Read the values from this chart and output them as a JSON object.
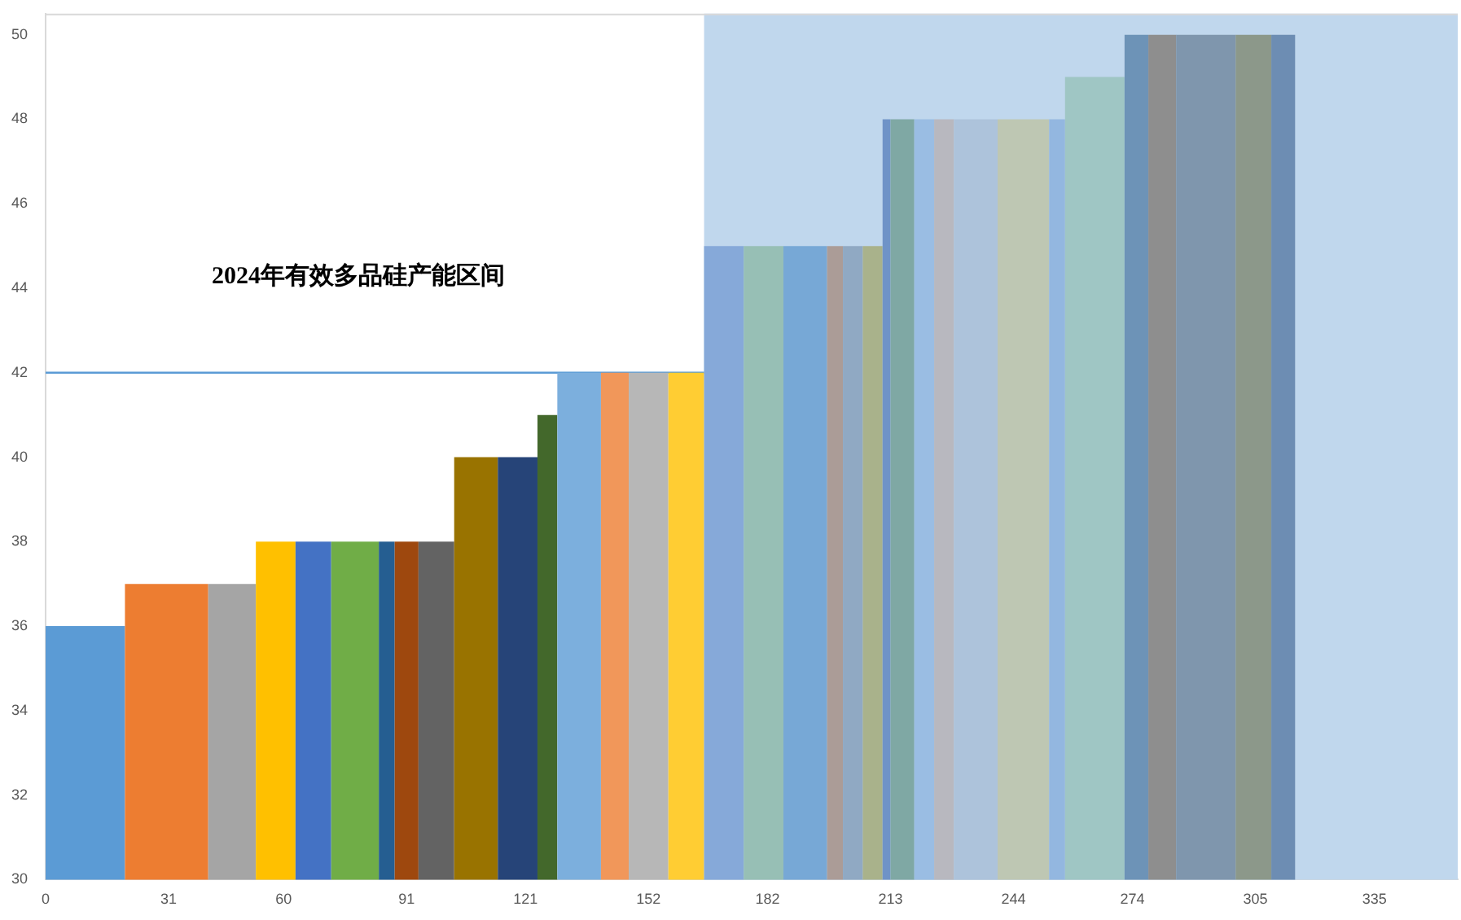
{
  "chart_data": {
    "type": "histogram",
    "bins": [
      0,
      20,
      41,
      53,
      63,
      72,
      84,
      88,
      94,
      103,
      114,
      124,
      129,
      140,
      147,
      157,
      166,
      176,
      186,
      197,
      201,
      206,
      211,
      213,
      219,
      224,
      229,
      240,
      253,
      257,
      272,
      278,
      285,
      300,
      309,
      315
    ],
    "values": [
      36,
      37,
      37,
      38,
      38,
      38,
      38,
      38,
      38,
      40,
      40,
      41,
      42,
      42,
      42,
      42,
      45,
      45,
      45,
      45,
      45,
      45,
      48,
      48,
      48,
      48,
      48,
      48,
      48,
      49,
      50,
      50,
      50,
      50,
      50
    ],
    "colors": [
      "#5b9bd5",
      "#ed7d31",
      "#a5a5a5",
      "#ffc000",
      "#4472c4",
      "#70ad47",
      "#255e91",
      "#9e480e",
      "#636363",
      "#997300",
      "#264478",
      "#43682b",
      "#7cafdd",
      "#f1975a",
      "#b7b7b7",
      "#ffcd33",
      "#86a9d9",
      "#97bfb5",
      "#77a8d6",
      "#ab9c97",
      "#90a9c3",
      "#a9b28b",
      "#6f93c7",
      "#7fa8a4",
      "#9abde3",
      "#b8b8bf",
      "#adc3db",
      "#bec7b3",
      "#93b7e0",
      "#9fc6c4",
      "#6d93b7",
      "#8e8e8e",
      "#7f96ad",
      "#8c988a",
      "#6d8db3"
    ],
    "xlim": [
      0,
      356
    ],
    "xticks": [
      0,
      31,
      60,
      91,
      121,
      152,
      182,
      213,
      244,
      274,
      305,
      335
    ],
    "ylim": [
      30,
      50.5
    ],
    "yticks": [
      30,
      32,
      34,
      36,
      38,
      40,
      42,
      44,
      46,
      48,
      50
    ],
    "ref_lines": [
      {
        "axis": "y",
        "value": 42,
        "color": "#5b9bd5"
      }
    ],
    "bands": [
      {
        "axis": "x",
        "from": 166,
        "to": 356,
        "color": "#c0d7ed"
      }
    ],
    "annotations": [
      "2024年有效多品硅产能区间"
    ],
    "grid": false,
    "legend": false
  }
}
